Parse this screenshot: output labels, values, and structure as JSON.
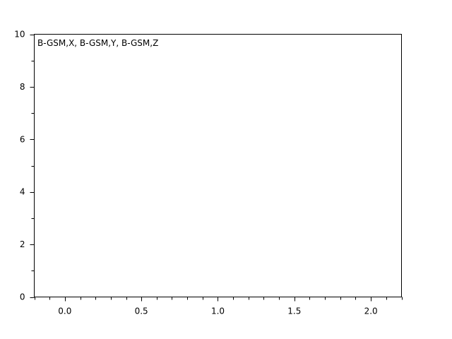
{
  "chart_data": {
    "type": "line",
    "title": "",
    "xlabel": "",
    "ylabel": "",
    "xlim": [
      -0.2,
      2.2
    ],
    "ylim": [
      0,
      10
    ],
    "x_ticks": [
      "0.0",
      "0.5",
      "1.0",
      "1.5",
      "2.0"
    ],
    "y_ticks": [
      "0",
      "2",
      "4",
      "6",
      "8",
      "10"
    ],
    "legend_text": "B-GSM,X, B-GSM,Y, B-GSM,Z",
    "legend_placement": "top-left",
    "grid": false,
    "series": []
  }
}
